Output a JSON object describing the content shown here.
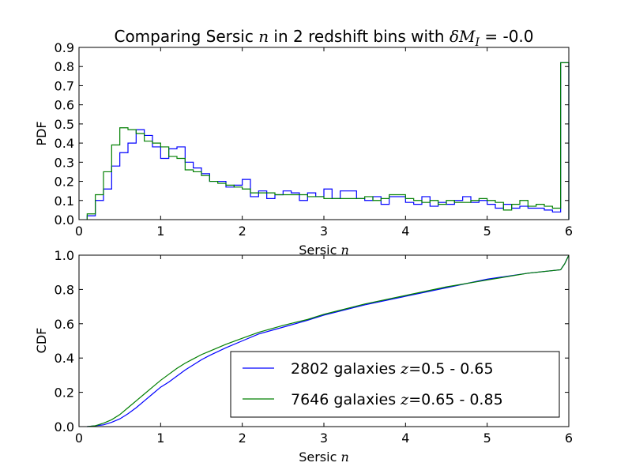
{
  "figure_title": {
    "prefix": "Comparing Sersic ",
    "var": "n",
    "middle": " in 2 redshift bins with ",
    "math": "δM",
    "math_sub": "I",
    "suffix": " = -0.0"
  },
  "chart_data": [
    {
      "type": "histogram-step",
      "panel": "pdf",
      "ylabel": "PDF",
      "xlabel_prefix": "Sersic ",
      "xlabel_var": "n",
      "xlim": [
        0,
        6
      ],
      "ylim": [
        0,
        0.9
      ],
      "xticks": [
        "0",
        "1",
        "2",
        "3",
        "4",
        "5",
        "6"
      ],
      "yticks": [
        "0.0",
        "0.1",
        "0.2",
        "0.3",
        "0.4",
        "0.5",
        "0.6",
        "0.7",
        "0.8",
        "0.9"
      ],
      "bin_edges_start": 0.1,
      "bin_width": 0.1,
      "series": [
        {
          "color": "#0000ff",
          "values": [
            0.02,
            0.1,
            0.16,
            0.28,
            0.35,
            0.4,
            0.47,
            0.44,
            0.38,
            0.32,
            0.37,
            0.38,
            0.3,
            0.27,
            0.24,
            0.2,
            0.2,
            0.17,
            0.18,
            0.21,
            0.12,
            0.15,
            0.11,
            0.13,
            0.15,
            0.14,
            0.1,
            0.14,
            0.12,
            0.16,
            0.11,
            0.15,
            0.15,
            0.11,
            0.1,
            0.12,
            0.08,
            0.12,
            0.12,
            0.09,
            0.08,
            0.12,
            0.07,
            0.09,
            0.08,
            0.1,
            0.12,
            0.09,
            0.1,
            0.08,
            0.06,
            0.08,
            0.06,
            0.07,
            0.06,
            0.06,
            0.05,
            0.04,
            0.82
          ]
        },
        {
          "color": "#007f00",
          "values": [
            0.03,
            0.13,
            0.25,
            0.39,
            0.48,
            0.47,
            0.45,
            0.41,
            0.4,
            0.38,
            0.33,
            0.32,
            0.26,
            0.25,
            0.23,
            0.2,
            0.19,
            0.18,
            0.17,
            0.16,
            0.14,
            0.14,
            0.14,
            0.13,
            0.13,
            0.13,
            0.13,
            0.12,
            0.12,
            0.11,
            0.11,
            0.11,
            0.11,
            0.11,
            0.12,
            0.1,
            0.11,
            0.13,
            0.13,
            0.11,
            0.1,
            0.09,
            0.1,
            0.08,
            0.1,
            0.09,
            0.09,
            0.1,
            0.11,
            0.1,
            0.09,
            0.05,
            0.08,
            0.1,
            0.07,
            0.08,
            0.07,
            0.06,
            0.82
          ]
        }
      ]
    },
    {
      "type": "line",
      "panel": "cdf",
      "ylabel": "CDF",
      "xlabel_prefix": "Sersic ",
      "xlabel_var": "n",
      "xlim": [
        0,
        6
      ],
      "ylim": [
        0,
        1
      ],
      "xticks": [
        "0",
        "1",
        "2",
        "3",
        "4",
        "5",
        "6"
      ],
      "yticks": [
        "0.0",
        "0.2",
        "0.4",
        "0.6",
        "0.8",
        "1.0"
      ],
      "legend_position": "lower-right",
      "series": [
        {
          "name_prefix": "2802 galaxies ",
          "name_var": "z",
          "name_suffix": "=0.5 - 0.65",
          "color": "#0000ff",
          "x": [
            0.1,
            0.2,
            0.3,
            0.4,
            0.5,
            0.6,
            0.7,
            0.8,
            0.9,
            1.0,
            1.1,
            1.2,
            1.3,
            1.4,
            1.5,
            1.6,
            1.8,
            2.0,
            2.2,
            2.5,
            2.8,
            3.0,
            3.5,
            4.0,
            4.5,
            5.0,
            5.5,
            5.9,
            5.95,
            6.0
          ],
          "y": [
            0.0,
            0.005,
            0.01,
            0.025,
            0.045,
            0.075,
            0.11,
            0.15,
            0.19,
            0.23,
            0.26,
            0.295,
            0.33,
            0.36,
            0.39,
            0.415,
            0.46,
            0.5,
            0.54,
            0.58,
            0.62,
            0.65,
            0.71,
            0.76,
            0.81,
            0.86,
            0.895,
            0.915,
            0.95,
            1.0
          ]
        },
        {
          "name_prefix": "7646 galaxies ",
          "name_var": "z",
          "name_suffix": "=0.65 - 0.85",
          "color": "#007f00",
          "x": [
            0.1,
            0.2,
            0.3,
            0.4,
            0.5,
            0.6,
            0.7,
            0.8,
            0.9,
            1.0,
            1.1,
            1.2,
            1.3,
            1.4,
            1.5,
            1.6,
            1.8,
            2.0,
            2.2,
            2.5,
            2.8,
            3.0,
            3.5,
            4.0,
            4.5,
            5.0,
            5.5,
            5.9,
            5.95,
            6.0
          ],
          "y": [
            0.0,
            0.005,
            0.02,
            0.04,
            0.07,
            0.11,
            0.15,
            0.19,
            0.23,
            0.27,
            0.305,
            0.34,
            0.37,
            0.395,
            0.42,
            0.44,
            0.48,
            0.515,
            0.55,
            0.59,
            0.625,
            0.655,
            0.715,
            0.765,
            0.815,
            0.855,
            0.895,
            0.915,
            0.95,
            1.0
          ]
        }
      ]
    }
  ]
}
